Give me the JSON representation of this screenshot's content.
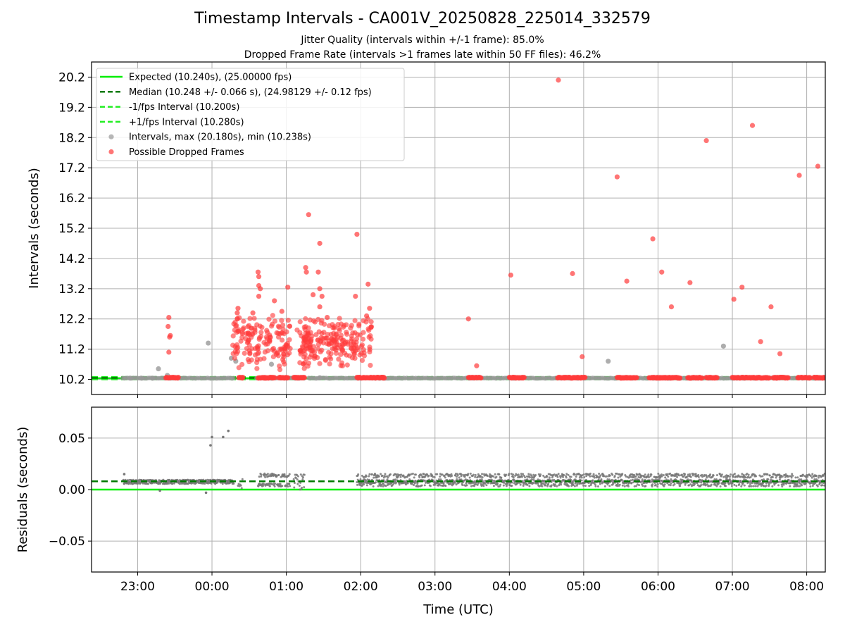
{
  "title": "Timestamp Intervals - CA001V_20250828_225014_332579",
  "subtitle_1": "Jitter Quality (intervals within +/-1 frame): 85.0%",
  "subtitle_2": "Dropped Frame Rate (intervals >1 frames late within 50 FF files): 46.2%",
  "colors": {
    "expected": "#00ee00",
    "median": "#007a00",
    "band": "#22ee22",
    "intervals": "#999999",
    "dropped": "#ff3b3b",
    "residuals": "#777777",
    "grid": "#b0b0b0"
  },
  "chart_data": [
    {
      "type": "scatter",
      "panel": "top",
      "ylabel": "Intervals (seconds)",
      "xlabel": "",
      "ylim": [
        9.7,
        20.7
      ],
      "xlim_hours": [
        -1.62,
        8.25
      ],
      "grid": true,
      "legend_placement": "upper-left",
      "y_ticks": [
        "10.2",
        "11.2",
        "12.2",
        "13.2",
        "14.2",
        "15.2",
        "16.2",
        "17.2",
        "18.2",
        "19.2",
        "20.2"
      ],
      "x_ticks": [
        "23:00",
        "00:00",
        "01:00",
        "02:00",
        "03:00",
        "04:00",
        "05:00",
        "06:00",
        "07:00",
        "08:00"
      ],
      "legend": [
        "Expected (10.240s), (25.00000 fps)",
        "Median (10.248 +/- 0.066 s), (24.98129 +/- 0.12 fps)",
        "-1/fps Interval (10.200s)",
        "+1/fps Interval (10.280s)",
        "Intervals, max (20.180s), min (10.238s)",
        "Possible Dropped Frames"
      ],
      "expected": 10.24,
      "median": 10.248,
      "minus_band": 10.2,
      "plus_band": 10.28,
      "baseline_segments": [
        [
          -1.2,
          0.25
        ],
        [
          0.25,
          0.3
        ],
        [
          0.6,
          1.25
        ],
        [
          1.3,
          1.9
        ],
        [
          1.9,
          8.25
        ]
      ],
      "dropped_baseline_segments": [
        [
          -0.62,
          -0.45
        ],
        [
          0.36,
          0.42
        ],
        [
          0.62,
          0.85
        ],
        [
          0.9,
          1.02
        ],
        [
          1.1,
          1.25
        ],
        [
          1.95,
          2.32
        ],
        [
          3.45,
          3.62
        ],
        [
          4.0,
          4.2
        ],
        [
          4.65,
          5.02
        ],
        [
          5.45,
          5.72
        ],
        [
          5.88,
          6.3
        ],
        [
          6.4,
          6.6
        ],
        [
          6.65,
          6.8
        ],
        [
          7.0,
          7.5
        ],
        [
          7.55,
          7.75
        ],
        [
          7.88,
          8.05
        ],
        [
          8.1,
          8.25
        ]
      ],
      "cluster_points": {
        "x_range": [
          0.28,
          2.15
        ],
        "y_range": [
          10.3,
          12.8
        ],
        "count": 380
      },
      "dropped_points": [
        [
          -0.58,
          12.25
        ],
        [
          -0.59,
          11.95
        ],
        [
          -0.57,
          11.6
        ],
        [
          -0.56,
          11.65
        ],
        [
          -0.58,
          11.1
        ],
        [
          0.35,
          12.55
        ],
        [
          0.34,
          12.4
        ],
        [
          0.55,
          12.4
        ],
        [
          0.62,
          13.75
        ],
        [
          0.63,
          13.6
        ],
        [
          0.63,
          13.3
        ],
        [
          0.65,
          13.2
        ],
        [
          0.63,
          12.95
        ],
        [
          0.84,
          12.8
        ],
        [
          0.94,
          12.45
        ],
        [
          1.02,
          13.25
        ],
        [
          0.98,
          11.2
        ],
        [
          1.3,
          15.65
        ],
        [
          1.45,
          14.7
        ],
        [
          1.26,
          13.9
        ],
        [
          1.27,
          13.75
        ],
        [
          1.43,
          13.75
        ],
        [
          1.45,
          13.2
        ],
        [
          1.36,
          13.0
        ],
        [
          1.48,
          12.95
        ],
        [
          1.45,
          12.6
        ],
        [
          1.55,
          12.25
        ],
        [
          1.95,
          15.0
        ],
        [
          2.1,
          13.35
        ],
        [
          1.93,
          12.95
        ],
        [
          2.12,
          12.55
        ],
        [
          2.08,
          12.3
        ],
        [
          3.45,
          12.2
        ],
        [
          3.56,
          10.65
        ],
        [
          4.02,
          13.65
        ],
        [
          4.66,
          20.1
        ],
        [
          4.85,
          13.7
        ],
        [
          4.98,
          10.95
        ],
        [
          5.45,
          16.9
        ],
        [
          5.58,
          13.45
        ],
        [
          5.93,
          14.85
        ],
        [
          6.05,
          13.75
        ],
        [
          6.18,
          12.6
        ],
        [
          6.43,
          13.4
        ],
        [
          6.65,
          18.1
        ],
        [
          7.02,
          12.85
        ],
        [
          7.13,
          13.25
        ],
        [
          7.27,
          18.6
        ],
        [
          7.38,
          11.45
        ],
        [
          7.52,
          12.6
        ],
        [
          7.64,
          11.05
        ],
        [
          7.9,
          16.95
        ],
        [
          8.15,
          17.25
        ]
      ],
      "interval_points": [
        [
          -1.1,
          10.24
        ],
        [
          -0.95,
          10.24
        ],
        [
          -0.8,
          10.24
        ],
        [
          -0.72,
          10.55
        ],
        [
          -0.6,
          10.33
        ],
        [
          -0.05,
          11.4
        ],
        [
          0.26,
          10.9
        ],
        [
          0.32,
          10.8
        ],
        [
          0.8,
          10.7
        ],
        [
          1.45,
          10.25
        ],
        [
          5.33,
          10.8
        ],
        [
          6.88,
          11.3
        ]
      ]
    },
    {
      "type": "scatter",
      "panel": "bottom",
      "ylabel": "Residuals (seconds)",
      "xlabel": "Time (UTC)",
      "ylim": [
        -0.08,
        0.08
      ],
      "xlim_hours": [
        -1.62,
        8.25
      ],
      "grid": true,
      "y_ticks": [
        "0.05",
        "0.00",
        "−0.05"
      ],
      "x_ticks": [
        "23:00",
        "00:00",
        "01:00",
        "02:00",
        "03:00",
        "04:00",
        "05:00",
        "06:00",
        "07:00",
        "08:00"
      ],
      "expected_residual": 0.0,
      "median_residual": 0.008,
      "residual_points": [
        [
          0.0,
          0.051
        ],
        [
          -0.02,
          0.043
        ],
        [
          0.15,
          0.051
        ],
        [
          0.22,
          0.057
        ],
        [
          -1.18,
          0.015
        ],
        [
          -0.7,
          -0.001
        ],
        [
          -0.08,
          -0.003
        ]
      ]
    }
  ]
}
